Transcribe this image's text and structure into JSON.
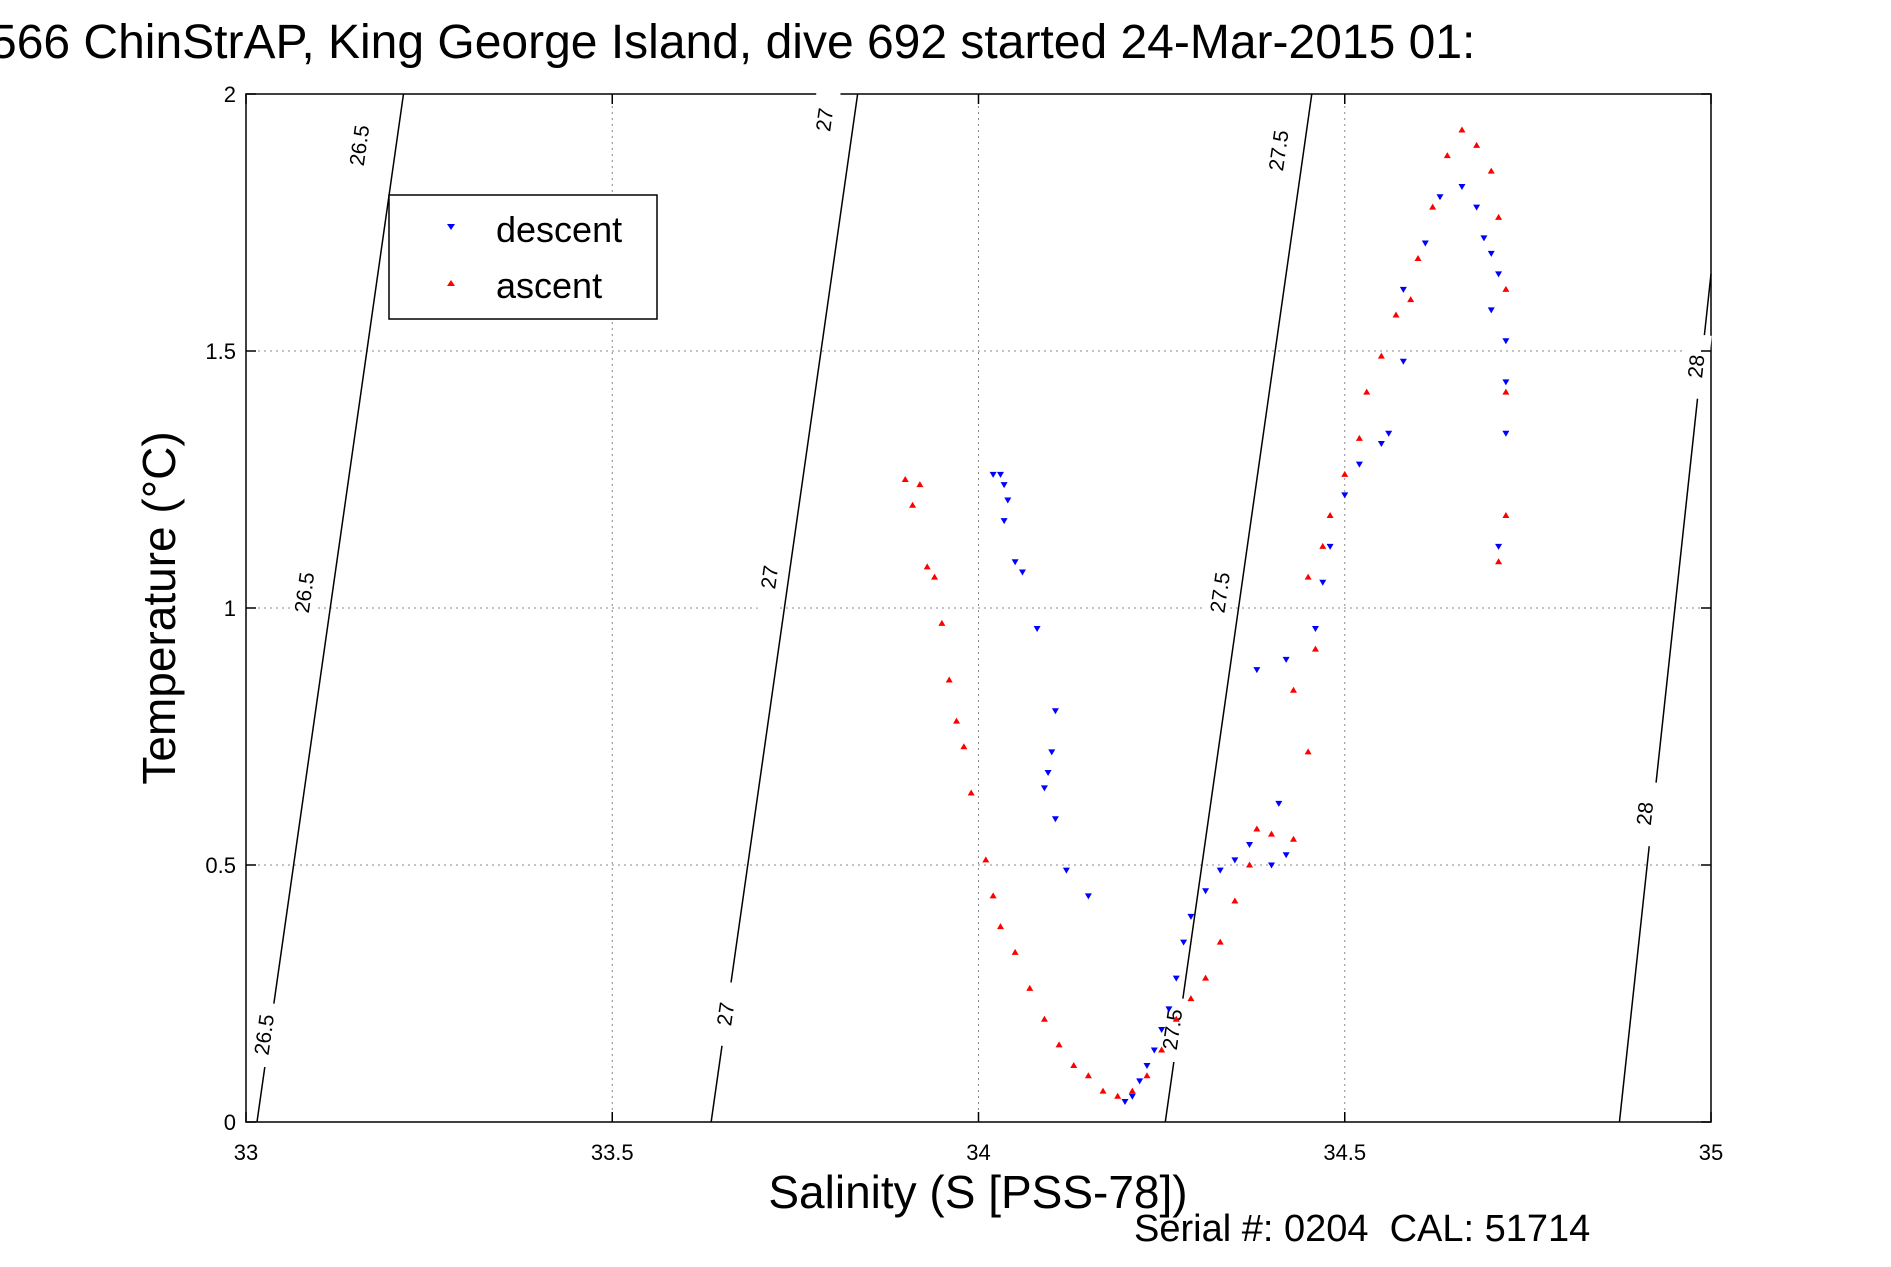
{
  "chart_data": {
    "type": "scatter",
    "title": "566 ChinStrAP, King George Island, dive 692 started 24-Mar-2015 01:",
    "xlabel": "Salinity (S [PSS-78])",
    "ylabel": "Temperature (°C)",
    "footer": "Serial #: 0204  CAL: 51714",
    "xlim": [
      33,
      35
    ],
    "ylim": [
      0,
      2
    ],
    "xticks": [
      33,
      33.5,
      34,
      34.5,
      35
    ],
    "xtick_labels": [
      "33",
      "33.5",
      "34",
      "34.5",
      "35"
    ],
    "yticks": [
      0,
      0.5,
      1,
      1.5,
      2
    ],
    "ytick_labels": [
      "0",
      "0.5",
      "1",
      "1.5",
      "2"
    ],
    "grid": true,
    "legend_placement": "top-left",
    "series": [
      {
        "name": "descent",
        "color": "#0000ff",
        "marker": "triangle-down",
        "points": [
          [
            34.02,
            1.26
          ],
          [
            34.03,
            1.26
          ],
          [
            34.035,
            1.24
          ],
          [
            34.04,
            1.21
          ],
          [
            34.035,
            1.17
          ],
          [
            34.05,
            1.09
          ],
          [
            34.06,
            1.07
          ],
          [
            34.08,
            0.96
          ],
          [
            34.105,
            0.8
          ],
          [
            34.1,
            0.72
          ],
          [
            34.095,
            0.68
          ],
          [
            34.09,
            0.65
          ],
          [
            34.105,
            0.59
          ],
          [
            34.12,
            0.49
          ],
          [
            34.15,
            0.44
          ],
          [
            34.2,
            0.04
          ],
          [
            34.21,
            0.05
          ],
          [
            34.22,
            0.08
          ],
          [
            34.23,
            0.11
          ],
          [
            34.24,
            0.14
          ],
          [
            34.25,
            0.18
          ],
          [
            34.26,
            0.22
          ],
          [
            34.27,
            0.28
          ],
          [
            34.28,
            0.35
          ],
          [
            34.29,
            0.4
          ],
          [
            34.31,
            0.45
          ],
          [
            34.33,
            0.49
          ],
          [
            34.35,
            0.51
          ],
          [
            34.37,
            0.54
          ],
          [
            34.4,
            0.5
          ],
          [
            34.42,
            0.52
          ],
          [
            34.41,
            0.62
          ],
          [
            34.38,
            0.88
          ],
          [
            34.42,
            0.9
          ],
          [
            34.46,
            0.96
          ],
          [
            34.47,
            1.05
          ],
          [
            34.48,
            1.12
          ],
          [
            34.5,
            1.22
          ],
          [
            34.52,
            1.28
          ],
          [
            34.55,
            1.32
          ],
          [
            34.56,
            1.34
          ],
          [
            34.58,
            1.48
          ],
          [
            34.58,
            1.62
          ],
          [
            34.61,
            1.71
          ],
          [
            34.63,
            1.8
          ],
          [
            34.66,
            1.82
          ],
          [
            34.68,
            1.78
          ],
          [
            34.69,
            1.72
          ],
          [
            34.7,
            1.69
          ],
          [
            34.71,
            1.65
          ],
          [
            34.7,
            1.58
          ],
          [
            34.72,
            1.52
          ],
          [
            34.72,
            1.44
          ],
          [
            34.72,
            1.34
          ],
          [
            34.71,
            1.12
          ]
        ]
      },
      {
        "name": "ascent",
        "color": "#ff0000",
        "marker": "triangle-up",
        "points": [
          [
            33.9,
            1.25
          ],
          [
            33.92,
            1.24
          ],
          [
            33.91,
            1.2
          ],
          [
            33.93,
            1.08
          ],
          [
            33.94,
            1.06
          ],
          [
            33.95,
            0.97
          ],
          [
            33.96,
            0.86
          ],
          [
            33.97,
            0.78
          ],
          [
            33.98,
            0.73
          ],
          [
            33.99,
            0.64
          ],
          [
            34.01,
            0.51
          ],
          [
            34.02,
            0.44
          ],
          [
            34.03,
            0.38
          ],
          [
            34.05,
            0.33
          ],
          [
            34.07,
            0.26
          ],
          [
            34.09,
            0.2
          ],
          [
            34.11,
            0.15
          ],
          [
            34.13,
            0.11
          ],
          [
            34.15,
            0.09
          ],
          [
            34.17,
            0.06
          ],
          [
            34.19,
            0.05
          ],
          [
            34.21,
            0.06
          ],
          [
            34.23,
            0.09
          ],
          [
            34.25,
            0.14
          ],
          [
            34.27,
            0.2
          ],
          [
            34.29,
            0.24
          ],
          [
            34.31,
            0.28
          ],
          [
            34.33,
            0.35
          ],
          [
            34.35,
            0.43
          ],
          [
            34.37,
            0.5
          ],
          [
            34.38,
            0.57
          ],
          [
            34.4,
            0.56
          ],
          [
            34.43,
            0.55
          ],
          [
            34.45,
            0.72
          ],
          [
            34.43,
            0.84
          ],
          [
            34.46,
            0.92
          ],
          [
            34.45,
            1.06
          ],
          [
            34.47,
            1.12
          ],
          [
            34.48,
            1.18
          ],
          [
            34.5,
            1.26
          ],
          [
            34.52,
            1.33
          ],
          [
            34.53,
            1.42
          ],
          [
            34.55,
            1.49
          ],
          [
            34.57,
            1.57
          ],
          [
            34.59,
            1.6
          ],
          [
            34.6,
            1.68
          ],
          [
            34.62,
            1.78
          ],
          [
            34.64,
            1.88
          ],
          [
            34.66,
            1.93
          ],
          [
            34.68,
            1.9
          ],
          [
            34.7,
            1.85
          ],
          [
            34.71,
            1.76
          ],
          [
            34.72,
            1.62
          ],
          [
            34.72,
            1.42
          ],
          [
            34.72,
            1.18
          ],
          [
            34.71,
            1.09
          ]
        ]
      }
    ],
    "contours": [
      {
        "label": "26.5",
        "points": [
          [
            33.015,
            0
          ],
          [
            33.215,
            2
          ]
        ],
        "label_points": [
          [
            33.025,
            0.17
          ],
          [
            33.08,
            1.03
          ],
          [
            33.155,
            1.9
          ]
        ]
      },
      {
        "label": "27",
        "points": [
          [
            33.635,
            0
          ],
          [
            33.835,
            2
          ]
        ],
        "label_points": [
          [
            33.655,
            0.21
          ],
          [
            33.715,
            1.06
          ],
          [
            33.79,
            1.95
          ]
        ]
      },
      {
        "label": "27.5",
        "points": [
          [
            34.255,
            0
          ],
          [
            34.455,
            2
          ]
        ],
        "label_points": [
          [
            34.265,
            0.18
          ],
          [
            34.33,
            1.03
          ],
          [
            34.41,
            1.89
          ]
        ]
      },
      {
        "label": "28",
        "points": [
          [
            34.875,
            0
          ],
          [
            35.0,
            1.65
          ]
        ],
        "label_points": [
          [
            34.91,
            0.6
          ],
          [
            34.98,
            1.47
          ]
        ]
      }
    ]
  }
}
